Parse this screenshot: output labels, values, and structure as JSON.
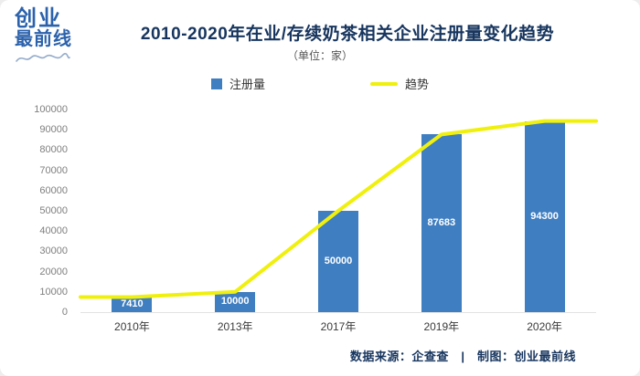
{
  "logo": {
    "line1": "创业",
    "line2": "最前线"
  },
  "header": {
    "title": "2010-2020年在业/存续奶茶相关企业注册量变化趋势",
    "subtitle": "（单位：家）"
  },
  "legend": {
    "bar_label": "注册量",
    "line_label": "趋势"
  },
  "footer": {
    "text": "数据来源：企查查　|　制图：创业最前线"
  },
  "colors": {
    "bar": "#3f7ec1",
    "trend": "#f0f00e",
    "title": "#17355e",
    "footer": "#17355e",
    "logo": "#2c62ac"
  },
  "chart_data": {
    "type": "bar",
    "title": "2010-2020年在业/存续奶茶相关企业注册量变化趋势",
    "subtitle": "（单位：家）",
    "categories": [
      "2010年",
      "2013年",
      "2017年",
      "2019年",
      "2020年"
    ],
    "series": [
      {
        "name": "注册量",
        "type": "bar",
        "values": [
          7410,
          10000,
          50000,
          87683,
          94300
        ]
      },
      {
        "name": "趋势",
        "type": "line",
        "values": [
          7410,
          10000,
          50000,
          87683,
          94300
        ]
      }
    ],
    "xlabel": "",
    "ylabel": "",
    "ylim": [
      0,
      100000
    ],
    "ytick_step": 10000,
    "grid": false,
    "legend_position": "top",
    "bar_value_labels": [
      "7410",
      "10000",
      "50000",
      "87683",
      "94300"
    ]
  }
}
